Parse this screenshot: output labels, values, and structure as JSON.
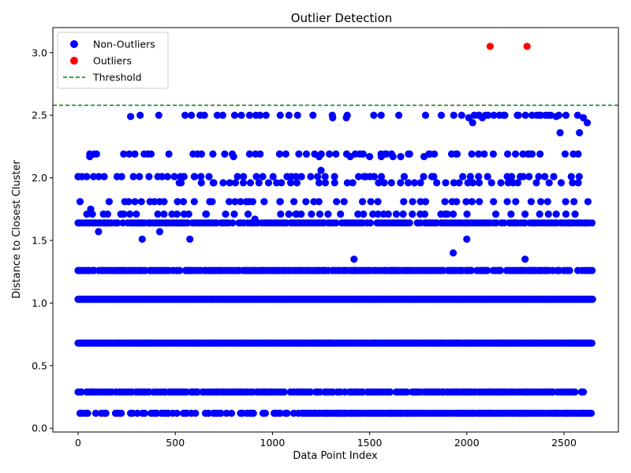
{
  "chart_data": {
    "type": "scatter",
    "title": "Outlier Detection",
    "xlabel": "Data Point Index",
    "ylabel": "Distance to Closest Cluster",
    "xlim": [
      -130,
      2780
    ],
    "ylim": [
      -0.03,
      3.2
    ],
    "x_ticks": [
      0,
      500,
      1000,
      1500,
      2000,
      2500
    ],
    "y_ticks": [
      0.0,
      0.5,
      1.0,
      1.5,
      2.0,
      2.5,
      3.0
    ],
    "x_tick_labels": [
      "0",
      "500",
      "1000",
      "1500",
      "2000",
      "2500"
    ],
    "y_tick_labels": [
      "0.0",
      "0.5",
      "1.0",
      "1.5",
      "2.0",
      "2.5",
      "3.0"
    ],
    "legend_position": "upper-left",
    "threshold": {
      "name": "Threshold",
      "value": 2.58,
      "color": "#008000",
      "style": "dashed"
    },
    "series": [
      {
        "name": "Non-Outliers",
        "color": "#0000ff",
        "x_range": [
          0,
          2650
        ],
        "levels": [
          {
            "y": 0.12,
            "x_start": 10,
            "x_end": 2650,
            "density": "dense-right"
          },
          {
            "y": 0.29,
            "x_start": 0,
            "x_end": 2610,
            "density": "dense"
          },
          {
            "y": 0.68,
            "x_start": 0,
            "x_end": 2650,
            "density": "continuous"
          },
          {
            "y": 1.03,
            "x_start": 0,
            "x_end": 2650,
            "density": "continuous"
          },
          {
            "y": 1.26,
            "x_start": 0,
            "x_end": 2650,
            "density": "dense"
          },
          {
            "y": 1.64,
            "x_start": 0,
            "x_end": 2650,
            "density": "dense"
          },
          {
            "y": 1.71,
            "x_start": 30,
            "x_end": 2650,
            "density": "sparse"
          },
          {
            "y": 1.81,
            "x_start": 10,
            "x_end": 2650,
            "density": "sparse"
          },
          {
            "y": 1.96,
            "x_start": 520,
            "x_end": 2650,
            "density": "sparse"
          },
          {
            "y": 2.01,
            "x_start": 0,
            "x_end": 2650,
            "density": "sparse"
          },
          {
            "y": 2.19,
            "x_start": 60,
            "x_end": 2600,
            "density": "sparse"
          },
          {
            "y": 2.5,
            "x_start": 270,
            "x_end": 2620,
            "density": "sparse"
          }
        ],
        "scattered_points": [
          [
            0,
            2.01
          ],
          [
            20,
            2.01
          ],
          [
            45,
            1.71
          ],
          [
            60,
            2.17
          ],
          [
            65,
            1.75
          ],
          [
            95,
            2.19
          ],
          [
            105,
            1.57
          ],
          [
            130,
            1.71
          ],
          [
            140,
            1.64
          ],
          [
            220,
            1.71
          ],
          [
            240,
            1.81
          ],
          [
            270,
            2.49
          ],
          [
            330,
            1.51
          ],
          [
            340,
            2.19
          ],
          [
            360,
            2.19
          ],
          [
            410,
            2.01
          ],
          [
            415,
            2.5
          ],
          [
            420,
            1.57
          ],
          [
            530,
            1.96
          ],
          [
            545,
            2.01
          ],
          [
            575,
            1.51
          ],
          [
            600,
            2.01
          ],
          [
            635,
            2.19
          ],
          [
            660,
            1.71
          ],
          [
            690,
            1.81
          ],
          [
            695,
            1.96
          ],
          [
            800,
            2.17
          ],
          [
            820,
            2.01
          ],
          [
            850,
            1.96
          ],
          [
            880,
            1.81
          ],
          [
            910,
            1.67
          ],
          [
            950,
            2.01
          ],
          [
            980,
            1.96
          ],
          [
            1040,
            1.81
          ],
          [
            1120,
            1.71
          ],
          [
            1175,
            2.19
          ],
          [
            1240,
            2.17
          ],
          [
            1250,
            2.06
          ],
          [
            1310,
            2.48
          ],
          [
            1320,
            1.96
          ],
          [
            1350,
            1.71
          ],
          [
            1380,
            2.48
          ],
          [
            1400,
            2.17
          ],
          [
            1420,
            1.35
          ],
          [
            1450,
            2.19
          ],
          [
            1480,
            2.01
          ],
          [
            1500,
            2.17
          ],
          [
            1560,
            2.17
          ],
          [
            1580,
            2.19
          ],
          [
            1620,
            2.17
          ],
          [
            1650,
            2.5
          ],
          [
            1660,
            2.17
          ],
          [
            1700,
            2.19
          ],
          [
            1780,
            2.17
          ],
          [
            1810,
            2.19
          ],
          [
            1830,
            2.01
          ],
          [
            1900,
            1.71
          ],
          [
            1930,
            1.4
          ],
          [
            1950,
            2.19
          ],
          [
            2000,
            1.51
          ],
          [
            2010,
            2.48
          ],
          [
            2030,
            2.44
          ],
          [
            2060,
            2.5
          ],
          [
            2080,
            2.48
          ],
          [
            2110,
            2.5
          ],
          [
            2190,
            2.5
          ],
          [
            2260,
            2.5
          ],
          [
            2290,
            2.01
          ],
          [
            2300,
            1.35
          ],
          [
            2320,
            2.19
          ],
          [
            2360,
            2.5
          ],
          [
            2380,
            2.5
          ],
          [
            2420,
            2.5
          ],
          [
            2460,
            2.49
          ],
          [
            2480,
            2.36
          ],
          [
            2510,
            2.5
          ],
          [
            2580,
            2.36
          ],
          [
            2600,
            2.48
          ],
          [
            2620,
            2.44
          ]
        ]
      },
      {
        "name": "Outliers",
        "color": "#ff0000",
        "points": [
          [
            2120,
            3.05
          ],
          [
            2310,
            3.05
          ]
        ]
      }
    ]
  }
}
